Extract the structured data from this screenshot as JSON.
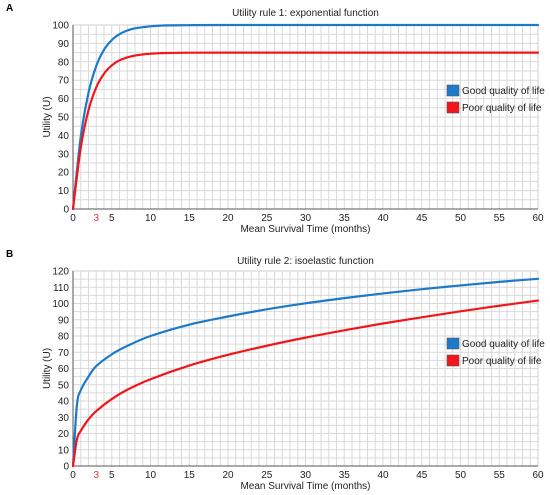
{
  "colors": {
    "good": "#1d7ac8",
    "poor": "#f2161c",
    "highlight_tick": "#e53333"
  },
  "chart_data": [
    {
      "panel": "A",
      "type": "line",
      "title": "Utility rule 1: exponential function",
      "xlabel": "Mean Survival Time (months)",
      "ylabel": "Utility (U)",
      "xlim": [
        0,
        60
      ],
      "ylim": [
        0,
        100
      ],
      "xticks": [
        "0",
        "3",
        "5",
        "10",
        "15",
        "20",
        "25",
        "30",
        "35",
        "40",
        "45",
        "50",
        "55",
        "60"
      ],
      "yticks": [
        "0",
        "10",
        "20",
        "30",
        "40",
        "50",
        "60",
        "70",
        "80",
        "90",
        "100"
      ],
      "highlight_xtick": "3",
      "grid": true,
      "legend": "right",
      "x": [
        0,
        1,
        2,
        3,
        4,
        5,
        6,
        7,
        8,
        10,
        12,
        15,
        20,
        30,
        40,
        50,
        60
      ],
      "series": [
        {
          "name": "Good quality  of life",
          "color": "#1d7ac8",
          "values": [
            0,
            39.3,
            63.2,
            77.7,
            86.5,
            91.8,
            95.0,
            97.0,
            98.2,
            99.3,
            99.8,
            99.9,
            100,
            100,
            100,
            100,
            100
          ]
        },
        {
          "name": "Poor quality  of life",
          "color": "#f2161c",
          "values": [
            0,
            33.4,
            53.7,
            66.1,
            73.5,
            78.0,
            80.8,
            82.4,
            83.4,
            84.4,
            84.8,
            84.95,
            85,
            85,
            85,
            85,
            85
          ]
        }
      ]
    },
    {
      "panel": "B",
      "type": "line",
      "title": "Utility rule 2: isoelastic function",
      "xlabel": "Mean Survival Time (months)",
      "ylabel": "Utility (U)",
      "xlim": [
        0,
        60
      ],
      "ylim": [
        0,
        120
      ],
      "xticks": [
        "0",
        "3",
        "5",
        "10",
        "15",
        "20",
        "25",
        "30",
        "35",
        "40",
        "45",
        "50",
        "55",
        "60"
      ],
      "yticks": [
        "0",
        "10",
        "20",
        "30",
        "40",
        "50",
        "60",
        "70",
        "80",
        "90",
        "100",
        "110",
        "120"
      ],
      "highlight_xtick": "3",
      "grid": true,
      "legend": "right",
      "x": [
        0,
        0.5,
        1,
        2,
        3,
        5,
        7,
        10,
        15,
        20,
        25,
        30,
        35,
        40,
        45,
        50,
        55,
        60
      ],
      "series": [
        {
          "name": "Good quality  of life",
          "color": "#1d7ac8",
          "values": [
            0,
            37.2,
            46.6,
            55.0,
            61.5,
            68.7,
            73.9,
            80.0,
            87.0,
            92.0,
            96.4,
            100.1,
            103.3,
            106.2,
            108.8,
            111.1,
            113.3,
            115.2
          ]
        },
        {
          "name": "Poor quality  of life",
          "color": "#f2161c",
          "values": [
            0,
            16.3,
            21.6,
            28.7,
            33.8,
            41.2,
            46.9,
            53.4,
            61.8,
            68.4,
            74.0,
            79.0,
            83.5,
            87.7,
            91.5,
            95.2,
            98.6,
            101.8
          ]
        }
      ]
    }
  ]
}
